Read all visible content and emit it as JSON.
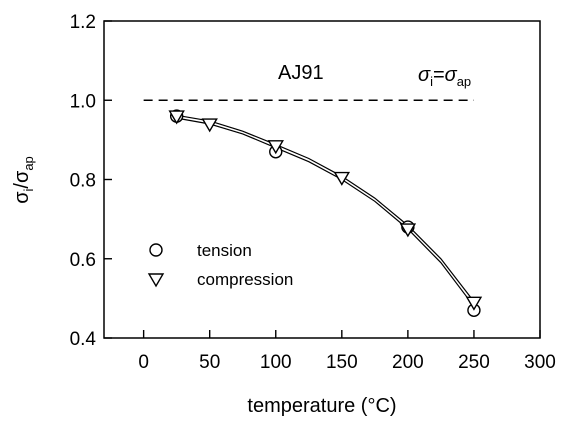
{
  "chart_data": {
    "type": "scatter",
    "title": "",
    "xlabel": "temperature (°C)",
    "ylabel": {
      "base": "σ",
      "sub1": "i",
      "slash": "/",
      "base2": "σ",
      "sub2": "ap"
    },
    "xlim": [
      -30,
      300
    ],
    "ylim": [
      0.4,
      1.2
    ],
    "xticks": [
      0,
      50,
      100,
      150,
      200,
      250,
      300
    ],
    "yticks": [
      0.4,
      0.6,
      0.8,
      1.0,
      1.2
    ],
    "xtick_labels": [
      "0",
      "50",
      "100",
      "150",
      "200",
      "250",
      "300"
    ],
    "ytick_labels": [
      "0.4",
      "0.6",
      "0.8",
      "1.0",
      "1.2"
    ],
    "grid": false,
    "legend_position": "lower-left",
    "annotations": {
      "label": "AJ91",
      "ref_line": {
        "sym": "σ",
        "sub1": "i",
        "eq": "=",
        "sym2": "σ",
        "sub2": "ap"
      }
    },
    "reference_line": {
      "y": 1.0,
      "x_range": [
        0,
        250
      ],
      "style": "dashed"
    },
    "series": [
      {
        "name": "tension",
        "marker": "circle",
        "x": [
          25,
          100,
          200,
          250
        ],
        "y": [
          0.96,
          0.87,
          0.68,
          0.47
        ],
        "fit": {
          "x": [
            25,
            50,
            75,
            100,
            125,
            150,
            175,
            200,
            225,
            250
          ],
          "y": [
            0.955,
            0.94,
            0.915,
            0.88,
            0.845,
            0.8,
            0.745,
            0.675,
            0.59,
            0.48
          ]
        }
      },
      {
        "name": "compression",
        "marker": "triangle-down",
        "x": [
          25,
          50,
          100,
          150,
          200,
          250
        ],
        "y": [
          0.96,
          0.94,
          0.885,
          0.805,
          0.675,
          0.49
        ],
        "fit": {
          "x": [
            25,
            50,
            75,
            100,
            125,
            150,
            175,
            200,
            225,
            250
          ],
          "y": [
            0.962,
            0.948,
            0.922,
            0.888,
            0.853,
            0.808,
            0.753,
            0.684,
            0.6,
            0.492
          ]
        }
      }
    ]
  }
}
